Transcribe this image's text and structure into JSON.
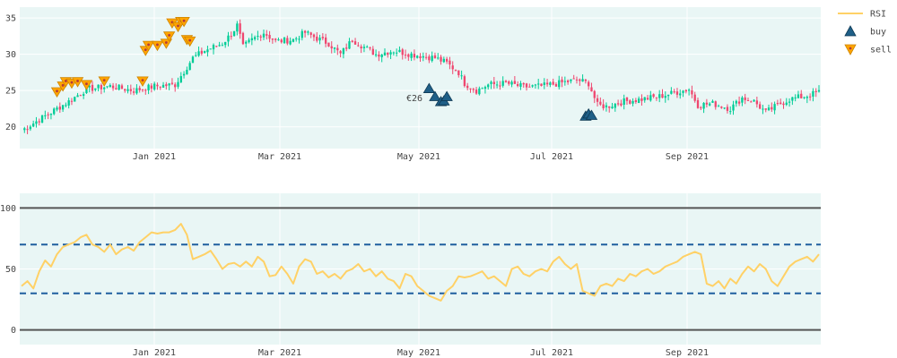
{
  "chart_data": [
    {
      "type": "candlestick",
      "x_ticks": [
        "Jan 2021",
        "Mar 2021",
        "May 2021",
        "Jul 2021",
        "Sep 2021"
      ],
      "y_ticks": [
        20,
        25,
        30,
        35
      ],
      "ylim": [
        17,
        36.5
      ],
      "grid": true,
      "colors": {
        "up": "#00cc96",
        "down": "#ef476f",
        "buy": "#1f5f87",
        "sell": "#ffa500",
        "background": "#e9f6f5"
      },
      "price_path": [
        [
          0,
          19.5
        ],
        [
          8,
          21.5
        ],
        [
          16,
          23.5
        ],
        [
          22,
          25.2
        ],
        [
          30,
          25.6
        ],
        [
          38,
          25.0
        ],
        [
          45,
          25.6
        ],
        [
          52,
          25.8
        ],
        [
          58,
          29.5
        ],
        [
          62,
          30.5
        ],
        [
          68,
          31.5
        ],
        [
          71,
          32.8
        ],
        [
          73,
          34.0
        ],
        [
          75,
          31.0
        ],
        [
          78,
          32.0
        ],
        [
          82,
          33.0
        ],
        [
          86,
          31.8
        ],
        [
          92,
          32.0
        ],
        [
          96,
          33.0
        ],
        [
          100,
          32.2
        ],
        [
          104,
          31.5
        ],
        [
          108,
          30.0
        ],
        [
          112,
          32.0
        ],
        [
          116,
          31.0
        ],
        [
          120,
          30.0
        ],
        [
          126,
          30.5
        ],
        [
          132,
          30.0
        ],
        [
          140,
          29.5
        ],
        [
          144,
          28.8
        ],
        [
          148,
          27.5
        ],
        [
          150,
          26.0
        ],
        [
          154,
          25.0
        ],
        [
          158,
          25.8
        ],
        [
          164,
          26.0
        ],
        [
          170,
          25.5
        ],
        [
          176,
          25.6
        ],
        [
          182,
          26.0
        ],
        [
          188,
          26.5
        ],
        [
          192,
          26.0
        ],
        [
          195,
          23.0
        ],
        [
          198,
          22.8
        ],
        [
          204,
          23.5
        ],
        [
          210,
          23.8
        ],
        [
          216,
          24.2
        ],
        [
          222,
          24.8
        ],
        [
          226,
          25.2
        ],
        [
          229,
          23.0
        ],
        [
          234,
          23.2
        ],
        [
          240,
          22.5
        ],
        [
          244,
          24.0
        ],
        [
          248,
          23.5
        ],
        [
          252,
          22.0
        ],
        [
          256,
          23.0
        ],
        [
          260,
          23.8
        ],
        [
          266,
          24.3
        ],
        [
          270,
          24.8
        ]
      ],
      "sell_signals": [
        {
          "x": 12,
          "y": 24.8
        },
        {
          "x": 14,
          "y": 25.6
        },
        {
          "x": 15,
          "y": 26.2
        },
        {
          "x": 17,
          "y": 26.0
        },
        {
          "x": 19,
          "y": 26.2
        },
        {
          "x": 22,
          "y": 25.8
        },
        {
          "x": 28,
          "y": 26.3
        },
        {
          "x": 41,
          "y": 26.3
        },
        {
          "x": 42,
          "y": 30.5
        },
        {
          "x": 43,
          "y": 31.2
        },
        {
          "x": 46,
          "y": 31.2
        },
        {
          "x": 49,
          "y": 31.5
        },
        {
          "x": 50,
          "y": 32.5
        },
        {
          "x": 51,
          "y": 34.3
        },
        {
          "x": 53,
          "y": 33.8
        },
        {
          "x": 54,
          "y": 34.5
        },
        {
          "x": 55,
          "y": 34.5
        },
        {
          "x": 56,
          "y": 32.0
        },
        {
          "x": 57,
          "y": 31.8
        }
      ],
      "buy_signals": [
        {
          "x": 138,
          "y": 25.3
        },
        {
          "x": 140,
          "y": 24.2
        },
        {
          "x": 142,
          "y": 23.5
        },
        {
          "x": 143,
          "y": 23.6
        },
        {
          "x": 144,
          "y": 24.2
        },
        {
          "x": 191,
          "y": 21.5
        },
        {
          "x": 192,
          "y": 21.8
        },
        {
          "x": 193,
          "y": 21.6
        }
      ],
      "annotations": [
        {
          "text": "€26",
          "x": 137,
          "y": 23.9
        }
      ]
    },
    {
      "type": "line",
      "x_ticks": [
        "Jan 2021",
        "Mar 2021",
        "May 2021",
        "Jul 2021",
        "Sep 2021"
      ],
      "y_ticks": [
        0,
        50,
        100
      ],
      "ylim": [
        -12,
        112
      ],
      "reference_lines": [
        {
          "y": 100,
          "style": "solid",
          "color": "#555555"
        },
        {
          "y": 70,
          "style": "dashed",
          "color": "#1f5f9f"
        },
        {
          "y": 30,
          "style": "dashed",
          "color": "#1f5f9f"
        },
        {
          "y": 0,
          "style": "solid",
          "color": "#555555"
        }
      ],
      "series": [
        {
          "name": "RSI",
          "color": "#ffd166",
          "x": [
            0,
            2,
            4,
            6,
            8,
            10,
            12,
            14,
            16,
            18,
            20,
            22,
            24,
            26,
            28,
            30,
            32,
            34,
            36,
            38,
            40,
            42,
            44,
            46,
            48,
            50,
            52,
            54,
            56,
            58,
            60,
            62,
            64,
            66,
            68,
            70,
            72,
            74,
            76,
            78,
            80,
            82,
            84,
            86,
            88,
            90,
            92,
            94,
            96,
            98,
            100,
            102,
            104,
            106,
            108,
            110,
            112,
            114,
            116,
            118,
            120,
            122,
            124,
            126,
            128,
            130,
            132,
            134,
            136,
            138,
            140,
            142,
            144,
            146,
            148,
            150,
            152,
            154,
            156,
            158,
            160,
            162,
            164,
            166,
            168,
            170,
            172,
            174,
            176,
            178,
            180,
            182,
            184,
            186,
            188,
            190,
            192,
            194,
            196,
            198,
            200,
            202,
            204,
            206,
            208,
            210,
            212,
            214,
            216,
            218,
            220,
            222,
            224,
            226,
            228,
            230,
            232,
            234,
            236,
            238,
            240,
            242,
            244,
            246,
            248,
            250,
            252,
            254,
            256,
            258,
            260,
            262,
            264,
            266,
            268,
            270
          ],
          "values": [
            36,
            40,
            34,
            48,
            57,
            52,
            62,
            68,
            70,
            72,
            76,
            78,
            70,
            68,
            64,
            70,
            62,
            66,
            68,
            65,
            72,
            76,
            80,
            79,
            80,
            80,
            82,
            87,
            78,
            58,
            60,
            62,
            65,
            58,
            50,
            54,
            55,
            52,
            56,
            52,
            60,
            56,
            44,
            45,
            52,
            46,
            38,
            52,
            58,
            56,
            46,
            48,
            43,
            46,
            42,
            48,
            50,
            54,
            48,
            50,
            44,
            48,
            42,
            40,
            34,
            46,
            44,
            36,
            32,
            28,
            26,
            24,
            32,
            36,
            44,
            43,
            44,
            46,
            48,
            42,
            44,
            40,
            36,
            50,
            52,
            46,
            44,
            48,
            50,
            48,
            56,
            60,
            54,
            50,
            54,
            32,
            30,
            28,
            36,
            38,
            36,
            42,
            40,
            46,
            44,
            48,
            50,
            46,
            48,
            52,
            54,
            56,
            60,
            62,
            64,
            62,
            38,
            36,
            40,
            34,
            42,
            38,
            46,
            52,
            48,
            54,
            50,
            40,
            36,
            44,
            52,
            56,
            58,
            60,
            56,
            62
          ]
        }
      ]
    }
  ],
  "legend": {
    "placement": "top-right",
    "items": [
      {
        "label": "RSI",
        "symbol": "line",
        "color": "#ffd166"
      },
      {
        "label": "buy",
        "symbol": "triangle-up",
        "color": "#1f5f87"
      },
      {
        "label": "sell",
        "symbol": "triangle-down",
        "color": "#ffa500"
      }
    ]
  }
}
